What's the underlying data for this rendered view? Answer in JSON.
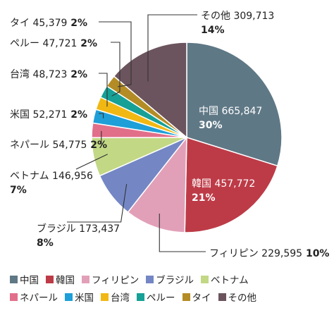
{
  "chart_data": {
    "type": "pie",
    "start_angle_deg": 0,
    "direction": "clockwise",
    "slices": [
      {
        "name": "中国",
        "value": 665847,
        "value_label": "665,847",
        "percent_label": "30%",
        "color": "#5f7886"
      },
      {
        "name": "韓国",
        "value": 457772,
        "value_label": "457,772",
        "percent_label": "21%",
        "color": "#bd3b47"
      },
      {
        "name": "フィリピン",
        "value": 229595,
        "value_label": "229,595",
        "percent_label": "10%",
        "color": "#e2a0b8"
      },
      {
        "name": "ブラジル",
        "value": 173437,
        "value_label": "173,437",
        "percent_label": "8%",
        "color": "#7487c4"
      },
      {
        "name": "ベトナム",
        "value": 146956,
        "value_label": "146,956",
        "percent_label": "7%",
        "color": "#c2d885"
      },
      {
        "name": "ネパール",
        "value": 54775,
        "value_label": "54,775",
        "percent_label": "2%",
        "color": "#e26f8a"
      },
      {
        "name": "米国",
        "value": 52271,
        "value_label": "52,271",
        "percent_label": "2%",
        "color": "#1e9fd8"
      },
      {
        "name": "台湾",
        "value": 48723,
        "value_label": "48,723",
        "percent_label": "2%",
        "color": "#f1b814"
      },
      {
        "name": "ペルー",
        "value": 47721,
        "value_label": "47,721",
        "percent_label": "2%",
        "color": "#16a096"
      },
      {
        "name": "タイ",
        "value": 45379,
        "value_label": "45,379",
        "percent_label": "2%",
        "color": "#b48c25"
      },
      {
        "name": "その他",
        "value": 309713,
        "value_label": "309,713",
        "percent_label": "14%",
        "color": "#6b545d"
      }
    ],
    "legend": {
      "placement": "bottom",
      "rows": [
        [
          "中国",
          "韓国",
          "フィリピン",
          "ブラジル",
          "ベトナム"
        ],
        [
          "ネパール",
          "米国",
          "台湾",
          "ペルー",
          "タイ",
          "その他"
        ]
      ]
    }
  }
}
